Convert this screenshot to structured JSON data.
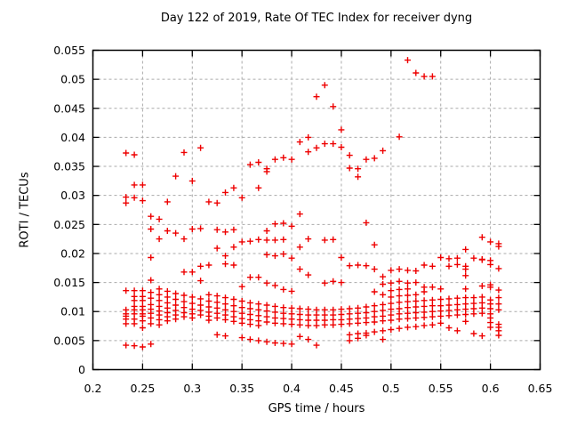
{
  "chart_data": {
    "type": "scatter",
    "title": "Day 122 of 2019, Rate Of TEC Index for receiver dyng",
    "xlabel": "GPS time / hours",
    "ylabel": "ROTI / TECUs",
    "xlim": [
      0.2,
      0.65
    ],
    "ylim": [
      0,
      0.055
    ],
    "xticks": [
      {
        "v": 0.2,
        "label": "0.2"
      },
      {
        "v": 0.25,
        "label": "0.25"
      },
      {
        "v": 0.3,
        "label": "0.3"
      },
      {
        "v": 0.35,
        "label": "0.35"
      },
      {
        "v": 0.4,
        "label": "0.4"
      },
      {
        "v": 0.45,
        "label": "0.45"
      },
      {
        "v": 0.5,
        "label": "0.5"
      },
      {
        "v": 0.55,
        "label": "0.55"
      },
      {
        "v": 0.6,
        "label": "0.6"
      },
      {
        "v": 0.65,
        "label": "0.65"
      }
    ],
    "yticks": [
      {
        "v": 0,
        "label": "0"
      },
      {
        "v": 0.005,
        "label": "0.005"
      },
      {
        "v": 0.01,
        "label": "0.01"
      },
      {
        "v": 0.015,
        "label": "0.015"
      },
      {
        "v": 0.02,
        "label": "0.02"
      },
      {
        "v": 0.025,
        "label": "0.025"
      },
      {
        "v": 0.03,
        "label": "0.03"
      },
      {
        "v": 0.035,
        "label": "0.035"
      },
      {
        "v": 0.04,
        "label": "0.04"
      },
      {
        "v": 0.045,
        "label": "0.045"
      },
      {
        "v": 0.05,
        "label": "0.05"
      },
      {
        "v": 0.055,
        "label": "0.055"
      }
    ],
    "grid": true,
    "legend": false,
    "marker": "plus",
    "marker_size_px": 7,
    "colors": {
      "marker": "#ee0000",
      "grid": "#aaaaaa",
      "axis": "#000000",
      "background": "#ffffff"
    },
    "series_name": "ROTI",
    "points_by_x": [
      {
        "x": 0.2333,
        "ys": [
          0.0373,
          0.0297,
          0.0287,
          0.0136,
          0.0103,
          0.0096,
          0.0092,
          0.0087,
          0.0079,
          0.0042
        ]
      },
      {
        "x": 0.2417,
        "ys": [
          0.037,
          0.0318,
          0.0296,
          0.0136,
          0.0126,
          0.0119,
          0.0109,
          0.0103,
          0.0096,
          0.0087,
          0.0079,
          0.0041
        ]
      },
      {
        "x": 0.25,
        "ys": [
          0.0318,
          0.0291,
          0.0136,
          0.0126,
          0.0119,
          0.0109,
          0.0103,
          0.0096,
          0.0092,
          0.0084,
          0.0072,
          0.0039
        ]
      },
      {
        "x": 0.2583,
        "ys": [
          0.0264,
          0.0242,
          0.0193,
          0.0154,
          0.0133,
          0.0123,
          0.0112,
          0.0104,
          0.0097,
          0.0089,
          0.0079,
          0.0044
        ]
      },
      {
        "x": 0.2667,
        "ys": [
          0.0259,
          0.0225,
          0.0139,
          0.0129,
          0.0119,
          0.0109,
          0.0101,
          0.0094,
          0.0086,
          0.0077
        ]
      },
      {
        "x": 0.275,
        "ys": [
          0.0289,
          0.0239,
          0.0135,
          0.0125,
          0.0115,
          0.0106,
          0.0098,
          0.0091,
          0.0084
        ]
      },
      {
        "x": 0.2833,
        "ys": [
          0.0333,
          0.0235,
          0.0131,
          0.0121,
          0.0111,
          0.0102,
          0.0094,
          0.0087
        ]
      },
      {
        "x": 0.2917,
        "ys": [
          0.0374,
          0.0225,
          0.0168,
          0.0128,
          0.0117,
          0.0107,
          0.0098,
          0.0091
        ]
      },
      {
        "x": 0.3,
        "ys": [
          0.0325,
          0.0242,
          0.0168,
          0.0125,
          0.0114,
          0.0104,
          0.0096,
          0.0089
        ]
      },
      {
        "x": 0.3083,
        "ys": [
          0.0382,
          0.0243,
          0.0178,
          0.0153,
          0.0122,
          0.0111,
          0.0102,
          0.0094
        ]
      },
      {
        "x": 0.3167,
        "ys": [
          0.0289,
          0.018,
          0.0129,
          0.0118,
          0.0108,
          0.0099,
          0.0092,
          0.0085
        ]
      },
      {
        "x": 0.325,
        "ys": [
          0.0287,
          0.0241,
          0.0209,
          0.0127,
          0.0116,
          0.0106,
          0.0097,
          0.0089,
          0.006
        ]
      },
      {
        "x": 0.3333,
        "ys": [
          0.0305,
          0.0237,
          0.0196,
          0.0182,
          0.0124,
          0.0113,
          0.0103,
          0.0094,
          0.0086,
          0.0058
        ]
      },
      {
        "x": 0.3417,
        "ys": [
          0.0313,
          0.0241,
          0.0211,
          0.018,
          0.0121,
          0.011,
          0.01,
          0.0091,
          0.0083
        ]
      },
      {
        "x": 0.35,
        "ys": [
          0.0296,
          0.022,
          0.0143,
          0.0118,
          0.0107,
          0.0097,
          0.0088,
          0.008,
          0.0055
        ]
      },
      {
        "x": 0.3583,
        "ys": [
          0.0353,
          0.0221,
          0.0159,
          0.0115,
          0.0105,
          0.0095,
          0.0086,
          0.0078,
          0.0052
        ]
      },
      {
        "x": 0.3667,
        "ys": [
          0.0357,
          0.0313,
          0.0224,
          0.0159,
          0.0113,
          0.0103,
          0.0093,
          0.0084,
          0.0076,
          0.005
        ]
      },
      {
        "x": 0.375,
        "ys": [
          0.0346,
          0.0341,
          0.0239,
          0.0223,
          0.0198,
          0.0149,
          0.0111,
          0.0101,
          0.0091,
          0.0082,
          0.0048
        ]
      },
      {
        "x": 0.3833,
        "ys": [
          0.0362,
          0.0251,
          0.0223,
          0.0196,
          0.0145,
          0.0109,
          0.0099,
          0.0089,
          0.008,
          0.0046
        ]
      },
      {
        "x": 0.3917,
        "ys": [
          0.0365,
          0.0252,
          0.0224,
          0.0199,
          0.0138,
          0.0107,
          0.0097,
          0.0088,
          0.0079,
          0.0045
        ]
      },
      {
        "x": 0.4,
        "ys": [
          0.0362,
          0.0247,
          0.0192,
          0.0135,
          0.0106,
          0.0096,
          0.0087,
          0.0078,
          0.0044
        ]
      },
      {
        "x": 0.4083,
        "ys": [
          0.0392,
          0.0268,
          0.0211,
          0.0173,
          0.0105,
          0.0095,
          0.0086,
          0.0077,
          0.0057
        ]
      },
      {
        "x": 0.4167,
        "ys": [
          0.04,
          0.0375,
          0.0225,
          0.0163,
          0.0104,
          0.0094,
          0.0085,
          0.0076,
          0.0052
        ]
      },
      {
        "x": 0.425,
        "ys": [
          0.047,
          0.0382,
          0.0103,
          0.0094,
          0.0085,
          0.0076,
          0.0042
        ]
      },
      {
        "x": 0.4333,
        "ys": [
          0.049,
          0.0389,
          0.0223,
          0.0149,
          0.0103,
          0.0094,
          0.0085,
          0.0077
        ]
      },
      {
        "x": 0.4417,
        "ys": [
          0.0453,
          0.0389,
          0.0224,
          0.0152,
          0.0103,
          0.0094,
          0.0086,
          0.0077
        ]
      },
      {
        "x": 0.45,
        "ys": [
          0.0413,
          0.0383,
          0.0193,
          0.015,
          0.0104,
          0.0095,
          0.0086,
          0.0078
        ]
      },
      {
        "x": 0.4583,
        "ys": [
          0.0369,
          0.0347,
          0.0179,
          0.0105,
          0.0096,
          0.0087,
          0.0079,
          0.006,
          0.005
        ]
      },
      {
        "x": 0.4667,
        "ys": [
          0.0346,
          0.0332,
          0.018,
          0.0106,
          0.0097,
          0.0088,
          0.008,
          0.0062,
          0.0054
        ]
      },
      {
        "x": 0.475,
        "ys": [
          0.0362,
          0.0253,
          0.0179,
          0.0108,
          0.0098,
          0.0089,
          0.0081,
          0.0063,
          0.0059
        ]
      },
      {
        "x": 0.4833,
        "ys": [
          0.0364,
          0.0215,
          0.0173,
          0.0134,
          0.011,
          0.01,
          0.0091,
          0.0082,
          0.0065
        ]
      },
      {
        "x": 0.4917,
        "ys": [
          0.0377,
          0.016,
          0.0147,
          0.0129,
          0.0112,
          0.0102,
          0.0092,
          0.0084,
          0.0067,
          0.0052
        ]
      },
      {
        "x": 0.5,
        "ys": [
          0.0171,
          0.0149,
          0.0136,
          0.0125,
          0.0114,
          0.0104,
          0.0094,
          0.0085,
          0.0069
        ]
      },
      {
        "x": 0.5083,
        "ys": [
          0.0401,
          0.0173,
          0.0152,
          0.0138,
          0.0127,
          0.0116,
          0.0105,
          0.0096,
          0.0087,
          0.0071
        ]
      },
      {
        "x": 0.5167,
        "ys": [
          0.0533,
          0.0171,
          0.0149,
          0.0139,
          0.0128,
          0.0117,
          0.0107,
          0.0097,
          0.0088,
          0.0073
        ]
      },
      {
        "x": 0.525,
        "ys": [
          0.0511,
          0.017,
          0.015,
          0.0129,
          0.0118,
          0.0108,
          0.0098,
          0.0089,
          0.0074
        ]
      },
      {
        "x": 0.5333,
        "ys": [
          0.0505,
          0.018,
          0.0142,
          0.0134,
          0.0119,
          0.0109,
          0.0099,
          0.009,
          0.0076
        ]
      },
      {
        "x": 0.5417,
        "ys": [
          0.0505,
          0.0178,
          0.0142,
          0.012,
          0.011,
          0.01,
          0.0091,
          0.0077
        ]
      },
      {
        "x": 0.55,
        "ys": [
          0.0193,
          0.0139,
          0.0121,
          0.011,
          0.0101,
          0.0092,
          0.008
        ]
      },
      {
        "x": 0.5583,
        "ys": [
          0.0191,
          0.0178,
          0.0122,
          0.0111,
          0.0102,
          0.0093,
          0.0072
        ]
      },
      {
        "x": 0.5667,
        "ys": [
          0.0192,
          0.0181,
          0.0123,
          0.0112,
          0.0103,
          0.0094,
          0.0067
        ]
      },
      {
        "x": 0.575,
        "ys": [
          0.0207,
          0.0178,
          0.0173,
          0.0162,
          0.0139,
          0.0124,
          0.0113,
          0.0104,
          0.0095,
          0.0083
        ]
      },
      {
        "x": 0.5833,
        "ys": [
          0.0192,
          0.0124,
          0.0114,
          0.0105,
          0.0096,
          0.0062
        ]
      },
      {
        "x": 0.5917,
        "ys": [
          0.0228,
          0.019,
          0.0189,
          0.0144,
          0.0125,
          0.0115,
          0.0106,
          0.0097,
          0.0058
        ]
      },
      {
        "x": 0.6,
        "ys": [
          0.022,
          0.0188,
          0.0181,
          0.0146,
          0.0142,
          0.012,
          0.0113,
          0.0105,
          0.0096,
          0.0089,
          0.0081,
          0.0073
        ]
      },
      {
        "x": 0.6083,
        "ys": [
          0.0217,
          0.0212,
          0.0174,
          0.0137,
          0.0124,
          0.0113,
          0.0103,
          0.0078,
          0.0073,
          0.0067,
          0.0059
        ]
      }
    ]
  }
}
